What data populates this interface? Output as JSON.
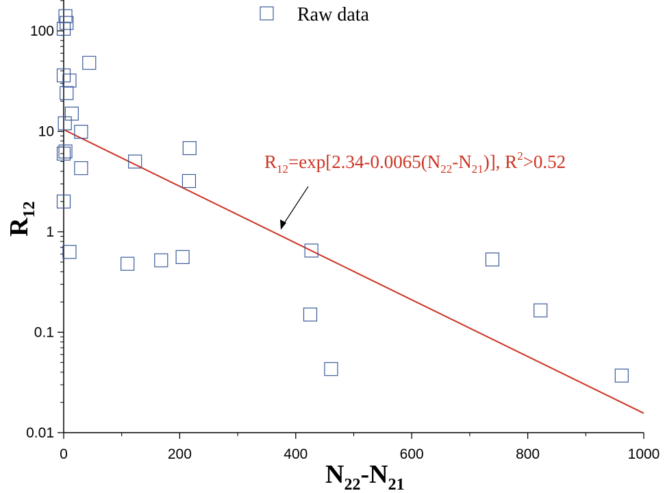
{
  "chart_data": {
    "type": "scatter",
    "xlabel": {
      "base": "N",
      "sub1": "22",
      "mid": "-N",
      "sub2": "21"
    },
    "ylabel": {
      "base": "R",
      "sub": "12"
    },
    "xlim": [
      0,
      1000
    ],
    "ylim": [
      0.01,
      200
    ],
    "yscale": "log",
    "x_ticks": [
      "0",
      "200",
      "400",
      "600",
      "800",
      "1000"
    ],
    "y_ticks": [
      "0.01",
      "0.1",
      "1",
      "10",
      "100"
    ],
    "grid": false,
    "legend": {
      "position": "top-center",
      "entries": [
        "Raw data"
      ]
    },
    "series": [
      {
        "name": "Raw data",
        "marker": "open-square",
        "color": "#3a5a9a",
        "points": [
          {
            "x": 3,
            "y": 140
          },
          {
            "x": 0,
            "y": 105
          },
          {
            "x": 5,
            "y": 120
          },
          {
            "x": 44,
            "y": 48
          },
          {
            "x": 0,
            "y": 36
          },
          {
            "x": 10,
            "y": 32
          },
          {
            "x": 5,
            "y": 24
          },
          {
            "x": 14,
            "y": 15
          },
          {
            "x": 2,
            "y": 12
          },
          {
            "x": 30,
            "y": 9.9
          },
          {
            "x": 0,
            "y": 6
          },
          {
            "x": 3,
            "y": 6.3
          },
          {
            "x": 30,
            "y": 4.3
          },
          {
            "x": 123,
            "y": 5.0
          },
          {
            "x": 217,
            "y": 6.8
          },
          {
            "x": 216,
            "y": 3.2
          },
          {
            "x": 0,
            "y": 2.0
          },
          {
            "x": 10,
            "y": 0.63
          },
          {
            "x": 110,
            "y": 0.48
          },
          {
            "x": 168,
            "y": 0.52
          },
          {
            "x": 205,
            "y": 0.56
          },
          {
            "x": 427,
            "y": 0.65
          },
          {
            "x": 425,
            "y": 0.15
          },
          {
            "x": 461,
            "y": 0.043
          },
          {
            "x": 739,
            "y": 0.53
          },
          {
            "x": 822,
            "y": 0.165
          },
          {
            "x": 962,
            "y": 0.037
          }
        ]
      },
      {
        "name": "",
        "type": "line",
        "color": "#cc3322",
        "x": [
          0,
          1000
        ],
        "y": [
          10.4,
          0.0156
        ]
      }
    ],
    "annotation": {
      "r": "R",
      "r_sub": "12",
      "eq": "=exp[2.34-0.0065(N",
      "n22": "22",
      "dash": "-N",
      "n21": "21",
      "close": ")], R",
      "sup": "2",
      "tail": ">0.52",
      "color": "#cc3322"
    }
  }
}
